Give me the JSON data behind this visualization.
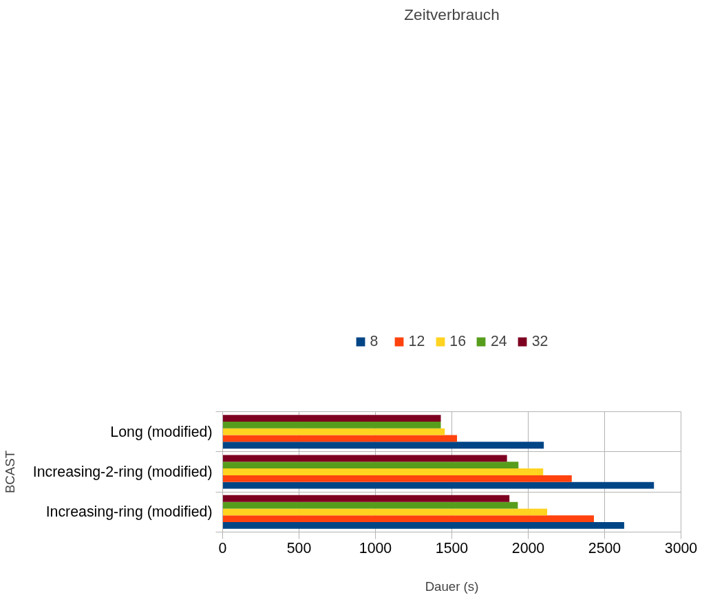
{
  "chart_data": {
    "type": "bar",
    "orientation": "horizontal",
    "title": "Zeitverbrauch",
    "xlabel": "Dauer (s)",
    "ylabel": "BCAST",
    "categories": [
      "Long (modified)",
      "Increasing-2-ring (modified)",
      "Increasing-ring (modified)"
    ],
    "series": [
      {
        "name": "8",
        "color": "#004586",
        "values": [
          2102,
          2823,
          2628
        ]
      },
      {
        "name": "12",
        "color": "#ff420e",
        "values": [
          1534,
          2285,
          2430
        ]
      },
      {
        "name": "16",
        "color": "#ffd320",
        "values": [
          1454,
          2098,
          2124
        ]
      },
      {
        "name": "24",
        "color": "#579d1c",
        "values": [
          1428,
          1936,
          1932
        ]
      },
      {
        "name": "32",
        "color": "#7e0021",
        "values": [
          1428,
          1861,
          1877
        ]
      }
    ],
    "xlim": [
      0,
      3000
    ],
    "xticks": [
      0,
      500,
      1000,
      1500,
      2000,
      2500,
      3000
    ],
    "grid": true,
    "legend": "top"
  }
}
